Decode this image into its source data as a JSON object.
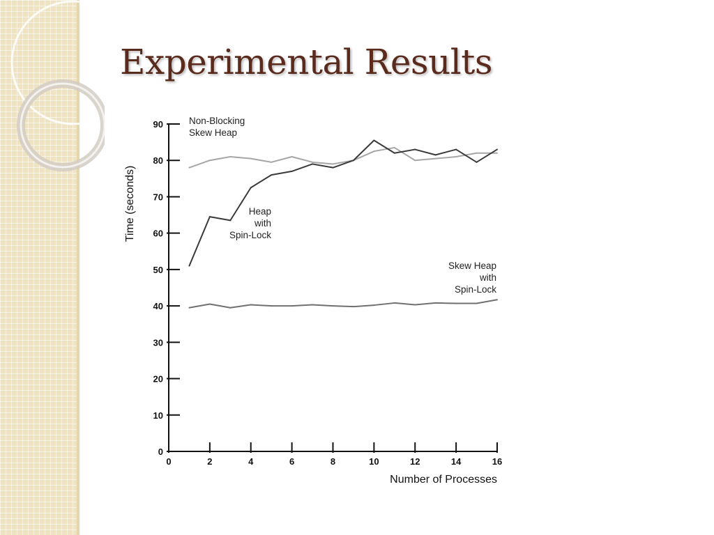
{
  "slide": {
    "title": "Experimental Results",
    "accent_color": "#5a2a1d",
    "panel_color": "#efe3c1"
  },
  "chart_data": {
    "type": "line",
    "title": "",
    "xlabel": "Number of Processes",
    "ylabel": "Time (seconds)",
    "xlim": [
      0,
      16
    ],
    "ylim": [
      0,
      90
    ],
    "xticks": [
      0,
      2,
      4,
      6,
      8,
      10,
      12,
      14,
      16
    ],
    "yticks": [
      0,
      10,
      20,
      30,
      40,
      50,
      60,
      70,
      80,
      90
    ],
    "x": [
      1,
      2,
      3,
      4,
      5,
      6,
      7,
      8,
      9,
      10,
      11,
      12,
      13,
      14,
      15,
      16
    ],
    "grid": false,
    "legend": "none",
    "series": [
      {
        "name": "Non-Blocking Skew Heap",
        "label_lines": [
          "Non-Blocking",
          "Skew Heap"
        ],
        "label_anchor": "start",
        "color": "#a6a6a6",
        "values": [
          78,
          80,
          81,
          80.5,
          79.5,
          81,
          79.5,
          79,
          80,
          82.5,
          83.5,
          80,
          80.5,
          81,
          82,
          82
        ]
      },
      {
        "name": "Heap with Spin-Lock",
        "label_lines": [
          "Heap",
          "with",
          "Spin-Lock"
        ],
        "label_anchor": "end",
        "color": "#3a3a3a",
        "values": [
          51,
          64.5,
          63.5,
          72.5,
          76,
          77,
          79,
          78,
          80,
          85.5,
          82,
          83,
          81.5,
          83,
          79.5,
          83
        ]
      },
      {
        "name": "Skew Heap with Spin-Lock",
        "label_lines": [
          "Skew Heap",
          "with",
          "Spin-Lock"
        ],
        "label_anchor": "end",
        "color": "#707070",
        "values": [
          39.5,
          40.5,
          39.5,
          40.3,
          40,
          40,
          40.3,
          40,
          39.8,
          40.2,
          40.8,
          40.3,
          40.8,
          40.7,
          40.7,
          41.7
        ]
      }
    ]
  }
}
